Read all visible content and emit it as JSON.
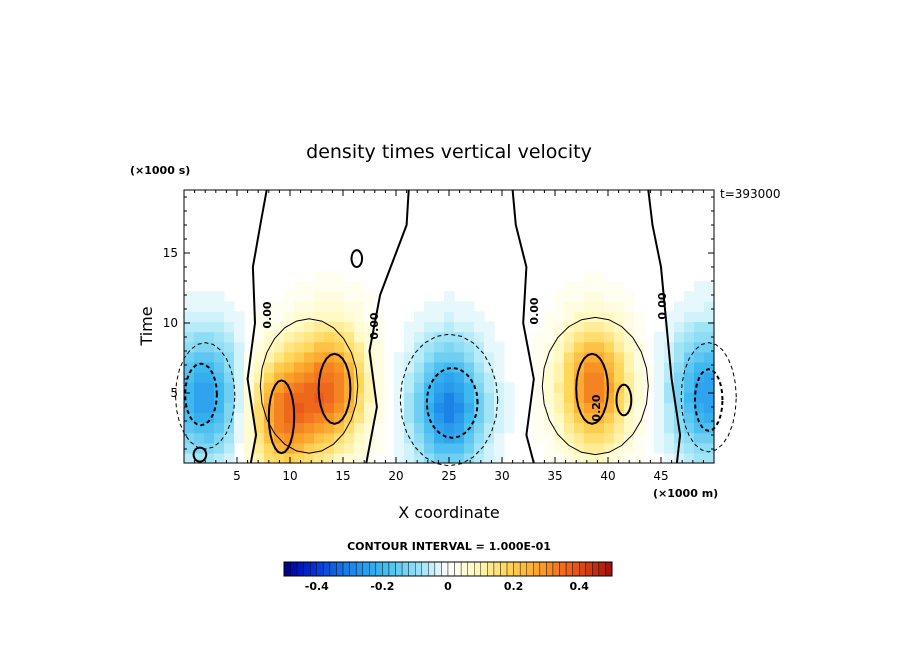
{
  "chart_data": {
    "type": "heatmap",
    "title": "density times vertical velocity",
    "xlabel": "X coordinate",
    "ylabel": "Time",
    "x_unit": "(×1000 m)",
    "y_unit": "(×1000 s)",
    "time_label": "t=393000",
    "xlim": [
      0,
      50
    ],
    "ylim": [
      0,
      19.5
    ],
    "x_ticks": [
      5,
      10,
      15,
      20,
      25,
      30,
      35,
      40,
      45
    ],
    "y_ticks": [
      5,
      10,
      15
    ],
    "contour_interval_text": "CONTOUR INTERVAL = 1.000E-01",
    "contour_labels": [
      "0.00",
      "0.00",
      "0.00",
      "0.00",
      "0.20"
    ],
    "colorbar": {
      "range": [
        -0.5,
        0.5
      ],
      "ticks": [
        -0.4,
        -0.2,
        0,
        0.2,
        0.4
      ],
      "tick_labels": [
        "-0.4",
        "-0.2",
        "0",
        "0.2",
        "0.4"
      ]
    },
    "features": [
      {
        "sign": "negative",
        "x": 2.0,
        "y": 4.8,
        "peak": -0.25
      },
      {
        "sign": "positive",
        "x": 9.5,
        "y": 3.5,
        "peak": 0.32
      },
      {
        "sign": "positive",
        "x": 14.0,
        "y": 5.5,
        "peak": 0.32
      },
      {
        "sign": "negative",
        "x": 25.0,
        "y": 4.0,
        "peak": -0.3
      },
      {
        "sign": "positive",
        "x": 38.7,
        "y": 5.5,
        "peak": 0.33
      },
      {
        "sign": "negative",
        "x": 49.3,
        "y": 5.0,
        "peak": -0.25
      }
    ]
  }
}
